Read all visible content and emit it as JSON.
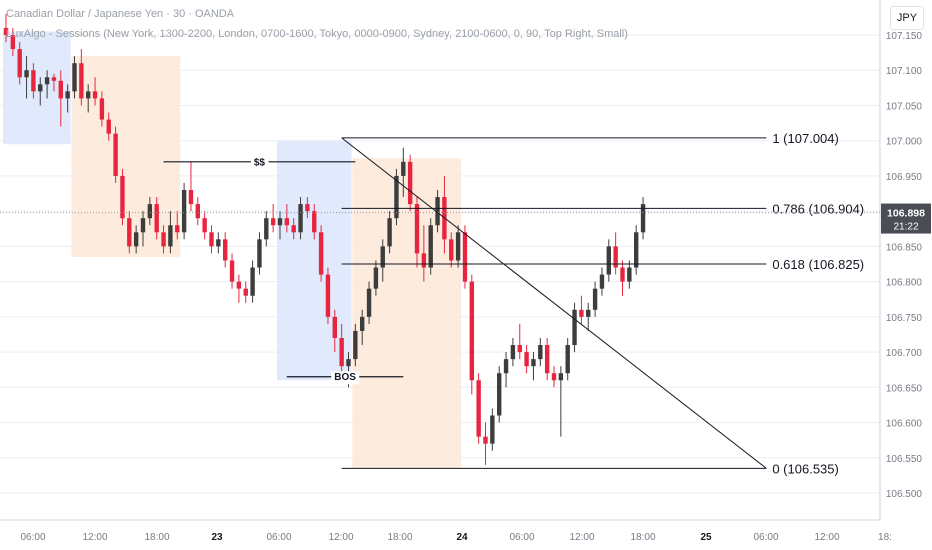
{
  "header": {
    "symbol_line": "Canadian Dollar / Japanese Yen · 30 · OANDA",
    "indicator_line": "LuxAlgo - Sessions (New York, 1300-2200, London, 0700-1600, Tokyo, 0000-0900, Sydney, 2100-0600, 0, 90, Top Right, Small)"
  },
  "currency_button": "JPY",
  "price_axis": {
    "ticks": [
      "107.150",
      "107.100",
      "107.050",
      "107.000",
      "106.950",
      "106.900",
      "106.850",
      "106.800",
      "106.750",
      "106.700",
      "106.650",
      "106.600",
      "106.550",
      "106.500"
    ],
    "current_price": "106.898",
    "countdown": "21:22"
  },
  "time_axis": {
    "ticks": [
      "06:00",
      "12:00",
      "18:00",
      "23",
      "06:00",
      "12:00",
      "18:00",
      "24",
      "06:00",
      "12:00",
      "18:00",
      "25",
      "06:00",
      "12:00",
      "18:"
    ]
  },
  "annotations": {
    "liquidity_label": "$$",
    "bos_label": "BOS"
  },
  "fib_levels": [
    {
      "label": "1 (107.004)",
      "price": 107.004
    },
    {
      "label": "0.786 (106.904)",
      "price": 106.904
    },
    {
      "label": "0.618 (106.825)",
      "price": 106.825
    },
    {
      "label": "0 (106.535)",
      "price": 106.535
    }
  ],
  "colors": {
    "bull": "#3d3d3d",
    "bear": "#e8253e",
    "tokyo_session": "#dbe6fb",
    "london_session": "#fde7d8",
    "grid": "#eceef2",
    "text": "#131722"
  },
  "chart_data": {
    "type": "candlestick",
    "symbol": "CADJPY",
    "interval_min": 30,
    "ylim": [
      106.49,
      107.17
    ],
    "candles": [
      [
        107.16,
        107.18,
        107.14,
        107.15
      ],
      [
        107.15,
        107.16,
        107.12,
        107.13
      ],
      [
        107.13,
        107.14,
        107.08,
        107.09
      ],
      [
        107.09,
        107.12,
        107.06,
        107.1
      ],
      [
        107.1,
        107.11,
        107.06,
        107.07
      ],
      [
        107.07,
        107.09,
        107.05,
        107.08
      ],
      [
        107.08,
        107.1,
        107.06,
        107.09
      ],
      [
        107.09,
        107.095,
        107.07,
        107.085
      ],
      [
        107.085,
        107.1,
        107.02,
        107.06
      ],
      [
        107.06,
        107.08,
        107.04,
        107.07
      ],
      [
        107.07,
        107.12,
        107.06,
        107.11
      ],
      [
        107.11,
        107.13,
        107.05,
        107.06
      ],
      [
        107.06,
        107.08,
        107.04,
        107.07
      ],
      [
        107.07,
        107.09,
        107.05,
        107.06
      ],
      [
        107.06,
        107.07,
        107.02,
        107.03
      ],
      [
        107.03,
        107.04,
        107.0,
        107.01
      ],
      [
        107.01,
        107.02,
        106.94,
        106.95
      ],
      [
        106.95,
        106.96,
        106.88,
        106.89
      ],
      [
        106.89,
        106.9,
        106.84,
        106.85
      ],
      [
        106.85,
        106.88,
        106.84,
        106.87
      ],
      [
        106.87,
        106.9,
        106.85,
        106.89
      ],
      [
        106.89,
        106.92,
        106.88,
        106.91
      ],
      [
        106.91,
        106.92,
        106.86,
        106.87
      ],
      [
        106.87,
        106.88,
        106.84,
        106.85
      ],
      [
        106.85,
        106.9,
        106.84,
        106.88
      ],
      [
        106.88,
        106.9,
        106.86,
        106.87
      ],
      [
        106.87,
        106.94,
        106.86,
        106.93
      ],
      [
        106.93,
        106.97,
        106.9,
        106.91
      ],
      [
        106.91,
        106.92,
        106.88,
        106.89
      ],
      [
        106.89,
        106.9,
        106.86,
        106.87
      ],
      [
        106.87,
        106.88,
        106.84,
        106.85
      ],
      [
        106.85,
        106.87,
        106.84,
        106.86
      ],
      [
        106.86,
        106.87,
        106.82,
        106.83
      ],
      [
        106.83,
        106.84,
        106.79,
        106.8
      ],
      [
        106.8,
        106.81,
        106.77,
        106.79
      ],
      [
        106.79,
        106.8,
        106.77,
        106.78
      ],
      [
        106.78,
        106.83,
        106.77,
        106.82
      ],
      [
        106.82,
        106.87,
        106.81,
        106.86
      ],
      [
        106.86,
        106.9,
        106.85,
        106.89
      ],
      [
        106.89,
        106.91,
        106.87,
        106.88
      ],
      [
        106.88,
        106.9,
        106.86,
        106.89
      ],
      [
        106.89,
        106.91,
        106.87,
        106.88
      ],
      [
        106.88,
        106.89,
        106.86,
        106.87
      ],
      [
        106.87,
        106.92,
        106.86,
        106.91
      ],
      [
        106.91,
        106.92,
        106.89,
        106.9
      ],
      [
        106.9,
        106.91,
        106.86,
        106.87
      ],
      [
        106.87,
        106.88,
        106.8,
        106.81
      ],
      [
        106.81,
        106.82,
        106.74,
        106.75
      ],
      [
        106.75,
        106.76,
        106.7,
        106.72
      ],
      [
        106.72,
        106.74,
        106.66,
        106.68
      ],
      [
        106.68,
        106.7,
        106.65,
        106.69
      ],
      [
        106.69,
        106.74,
        106.68,
        106.73
      ],
      [
        106.73,
        106.76,
        106.71,
        106.75
      ],
      [
        106.75,
        106.8,
        106.74,
        106.79
      ],
      [
        106.79,
        106.83,
        106.78,
        106.82
      ],
      [
        106.82,
        106.86,
        106.8,
        106.85
      ],
      [
        106.85,
        106.9,
        106.84,
        106.89
      ],
      [
        106.89,
        106.96,
        106.88,
        106.95
      ],
      [
        106.95,
        106.99,
        106.92,
        106.97
      ],
      [
        106.97,
        106.98,
        106.9,
        106.91
      ],
      [
        106.91,
        106.92,
        106.82,
        106.84
      ],
      [
        106.84,
        106.88,
        106.8,
        106.82
      ],
      [
        106.82,
        106.89,
        106.81,
        106.88
      ],
      [
        106.88,
        106.93,
        106.87,
        106.92
      ],
      [
        106.92,
        106.95,
        106.84,
        106.86
      ],
      [
        106.86,
        106.87,
        106.82,
        106.83
      ],
      [
        106.83,
        106.88,
        106.82,
        106.87
      ],
      [
        106.87,
        106.88,
        106.79,
        106.8
      ],
      [
        106.8,
        106.81,
        106.64,
        106.66
      ],
      [
        106.66,
        106.67,
        106.57,
        106.58
      ],
      [
        106.58,
        106.6,
        106.54,
        106.57
      ],
      [
        106.57,
        106.62,
        106.56,
        106.61
      ],
      [
        106.61,
        106.68,
        106.6,
        106.67
      ],
      [
        106.67,
        106.7,
        106.65,
        106.69
      ],
      [
        106.69,
        106.72,
        106.68,
        106.71
      ],
      [
        106.71,
        106.74,
        106.69,
        106.7
      ],
      [
        106.7,
        106.71,
        106.67,
        106.68
      ],
      [
        106.68,
        106.7,
        106.66,
        106.69
      ],
      [
        106.69,
        106.72,
        106.68,
        106.71
      ],
      [
        106.71,
        106.72,
        106.66,
        106.67
      ],
      [
        106.67,
        106.68,
        106.65,
        106.66
      ],
      [
        106.66,
        106.68,
        106.58,
        106.67
      ],
      [
        106.67,
        106.72,
        106.66,
        106.71
      ],
      [
        106.71,
        106.77,
        106.7,
        106.76
      ],
      [
        106.76,
        106.78,
        106.74,
        106.75
      ],
      [
        106.75,
        106.77,
        106.73,
        106.76
      ],
      [
        106.76,
        106.8,
        106.75,
        106.79
      ],
      [
        106.79,
        106.82,
        106.78,
        106.81
      ],
      [
        106.81,
        106.86,
        106.8,
        106.85
      ],
      [
        106.85,
        106.87,
        106.81,
        106.82
      ],
      [
        106.82,
        106.83,
        106.78,
        106.8
      ],
      [
        106.8,
        106.83,
        106.79,
        106.82
      ],
      [
        106.82,
        106.88,
        106.81,
        106.87
      ],
      [
        106.87,
        106.92,
        106.86,
        106.91
      ]
    ],
    "sessions": [
      {
        "name": "Tokyo",
        "start": 0,
        "end": 9,
        "high": 107.155,
        "low": 106.995
      },
      {
        "name": "London",
        "start": 10,
        "end": 25,
        "high": 107.12,
        "low": 106.835
      },
      {
        "name": "Tokyo",
        "start": 40,
        "end": 50,
        "high": 107.0,
        "low": 106.66
      },
      {
        "name": "London",
        "start": 51,
        "end": 66,
        "high": 106.975,
        "low": 106.535
      }
    ],
    "annotations": [
      {
        "label": "$$",
        "price": 106.97,
        "from": 23,
        "to": 51
      },
      {
        "label": "BOS",
        "price": 106.665,
        "from": 41,
        "to": 58
      }
    ],
    "fib_anchor_candle": 49,
    "fib_end_candle": 111,
    "fib_diagonal": {
      "from": [
        49,
        107.004
      ],
      "to": [
        111,
        106.535
      ]
    }
  }
}
